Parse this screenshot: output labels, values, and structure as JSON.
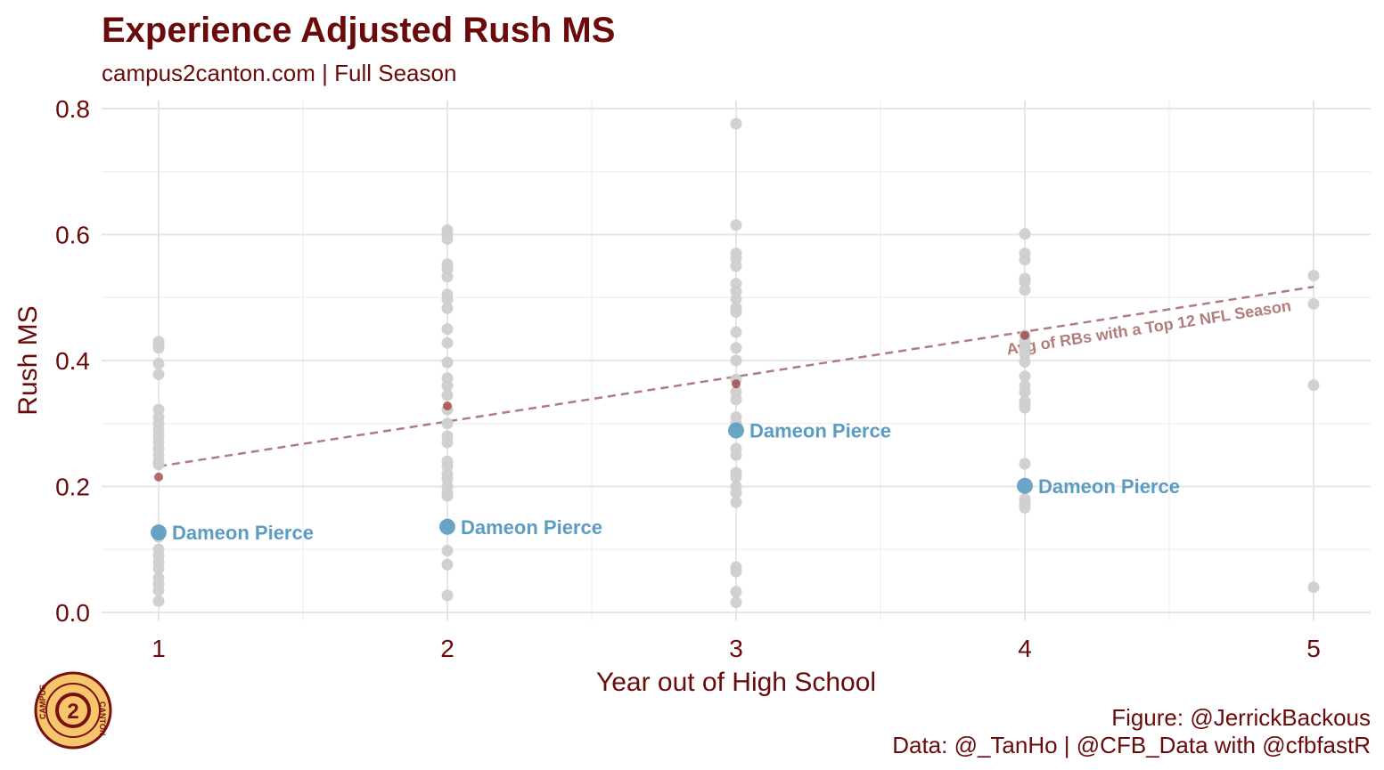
{
  "header": {
    "title": "Experience Adjusted Rush MS",
    "subtitle": "campus2canton.com | Full Season"
  },
  "caption": {
    "line1": "Figure: @JerrickBackous",
    "line2": "Data: @_TanHo | @CFB_Data with @cfbfastR"
  },
  "logo": {
    "text_top": "CAMPUS",
    "text_right": "CANTON",
    "center": "2"
  },
  "colors": {
    "text": "#6b0a0a",
    "grid_major": "#e6e6e6",
    "grid_minor": "#f2f2f2",
    "other_points": "#cfcfcf",
    "highlight": "#5b9cc3",
    "avg_points": "#9b3a3a",
    "avg_line": "#b07c7c",
    "logo_fill": "#f6c66c",
    "logo_ring": "#7a0f0f"
  },
  "chart_data": {
    "type": "scatter",
    "xlabel": "Year out of High School",
    "ylabel": "Rush MS",
    "xlim": [
      0.8,
      5.2
    ],
    "ylim": [
      0,
      0.8
    ],
    "xticks": [
      1,
      2,
      3,
      4,
      5
    ],
    "yticks": [
      0.0,
      0.2,
      0.4,
      0.6,
      0.8
    ],
    "ytick_labels": [
      "0.0",
      "0.2",
      "0.4",
      "0.6",
      "0.8"
    ],
    "grid": true,
    "series": [
      {
        "role": "other",
        "points": [
          [
            1,
            0.43
          ],
          [
            1,
            0.425
          ],
          [
            1,
            0.42
          ],
          [
            1,
            0.395
          ],
          [
            1,
            0.378
          ],
          [
            1,
            0.322
          ],
          [
            1,
            0.31
          ],
          [
            1,
            0.3
          ],
          [
            1,
            0.29
          ],
          [
            1,
            0.28
          ],
          [
            1,
            0.27
          ],
          [
            1,
            0.26
          ],
          [
            1,
            0.25
          ],
          [
            1,
            0.24
          ],
          [
            1,
            0.235
          ],
          [
            1,
            0.13
          ],
          [
            1,
            0.12
          ],
          [
            1,
            0.1
          ],
          [
            1,
            0.09
          ],
          [
            1,
            0.08
          ],
          [
            1,
            0.07
          ],
          [
            1,
            0.055
          ],
          [
            1,
            0.045
          ],
          [
            1,
            0.035
          ],
          [
            1,
            0.018
          ],
          [
            2,
            0.607
          ],
          [
            2,
            0.6
          ],
          [
            2,
            0.593
          ],
          [
            2,
            0.553
          ],
          [
            2,
            0.545
          ],
          [
            2,
            0.533
          ],
          [
            2,
            0.505
          ],
          [
            2,
            0.497
          ],
          [
            2,
            0.483
          ],
          [
            2,
            0.45
          ],
          [
            2,
            0.428
          ],
          [
            2,
            0.397
          ],
          [
            2,
            0.372
          ],
          [
            2,
            0.36
          ],
          [
            2,
            0.345
          ],
          [
            2,
            0.322
          ],
          [
            2,
            0.3
          ],
          [
            2,
            0.28
          ],
          [
            2,
            0.27
          ],
          [
            2,
            0.24
          ],
          [
            2,
            0.232
          ],
          [
            2,
            0.22
          ],
          [
            2,
            0.212
          ],
          [
            2,
            0.2
          ],
          [
            2,
            0.19
          ],
          [
            2,
            0.185
          ],
          [
            2,
            0.14
          ],
          [
            2,
            0.098
          ],
          [
            2,
            0.076
          ],
          [
            2,
            0.027
          ],
          [
            3,
            0.776
          ],
          [
            3,
            0.615
          ],
          [
            3,
            0.57
          ],
          [
            3,
            0.562
          ],
          [
            3,
            0.55
          ],
          [
            3,
            0.522
          ],
          [
            3,
            0.51
          ],
          [
            3,
            0.498
          ],
          [
            3,
            0.484
          ],
          [
            3,
            0.477
          ],
          [
            3,
            0.445
          ],
          [
            3,
            0.42
          ],
          [
            3,
            0.4
          ],
          [
            3,
            0.37
          ],
          [
            3,
            0.35
          ],
          [
            3,
            0.338
          ],
          [
            3,
            0.31
          ],
          [
            3,
            0.3
          ],
          [
            3,
            0.26
          ],
          [
            3,
            0.25
          ],
          [
            3,
            0.222
          ],
          [
            3,
            0.215
          ],
          [
            3,
            0.2
          ],
          [
            3,
            0.19
          ],
          [
            3,
            0.175
          ],
          [
            3,
            0.072
          ],
          [
            3,
            0.065
          ],
          [
            3,
            0.033
          ],
          [
            3,
            0.016
          ],
          [
            4,
            0.601
          ],
          [
            4,
            0.57
          ],
          [
            4,
            0.56
          ],
          [
            4,
            0.53
          ],
          [
            4,
            0.525
          ],
          [
            4,
            0.512
          ],
          [
            4,
            0.44
          ],
          [
            4,
            0.43
          ],
          [
            4,
            0.42
          ],
          [
            4,
            0.41
          ],
          [
            4,
            0.398
          ],
          [
            4,
            0.375
          ],
          [
            4,
            0.36
          ],
          [
            4,
            0.35
          ],
          [
            4,
            0.335
          ],
          [
            4,
            0.33
          ],
          [
            4,
            0.325
          ],
          [
            4,
            0.236
          ],
          [
            4,
            0.18
          ],
          [
            4,
            0.172
          ],
          [
            4,
            0.166
          ],
          [
            5,
            0.535
          ],
          [
            5,
            0.49
          ],
          [
            5,
            0.361
          ],
          [
            5,
            0.04
          ]
        ]
      },
      {
        "role": "avg",
        "points": [
          [
            1,
            0.215
          ],
          [
            2,
            0.328
          ],
          [
            3,
            0.363
          ],
          [
            4,
            0.44
          ]
        ]
      },
      {
        "role": "highlight",
        "name": "Dameon Pierce",
        "points": [
          [
            1,
            0.127
          ],
          [
            2,
            0.136
          ],
          [
            3,
            0.289
          ],
          [
            4,
            0.201
          ]
        ]
      }
    ],
    "avg_line": {
      "label": "Avg of RBs with a Top 12 NFL Season",
      "from": [
        1,
        0.232
      ],
      "to": [
        5,
        0.517
      ]
    }
  }
}
